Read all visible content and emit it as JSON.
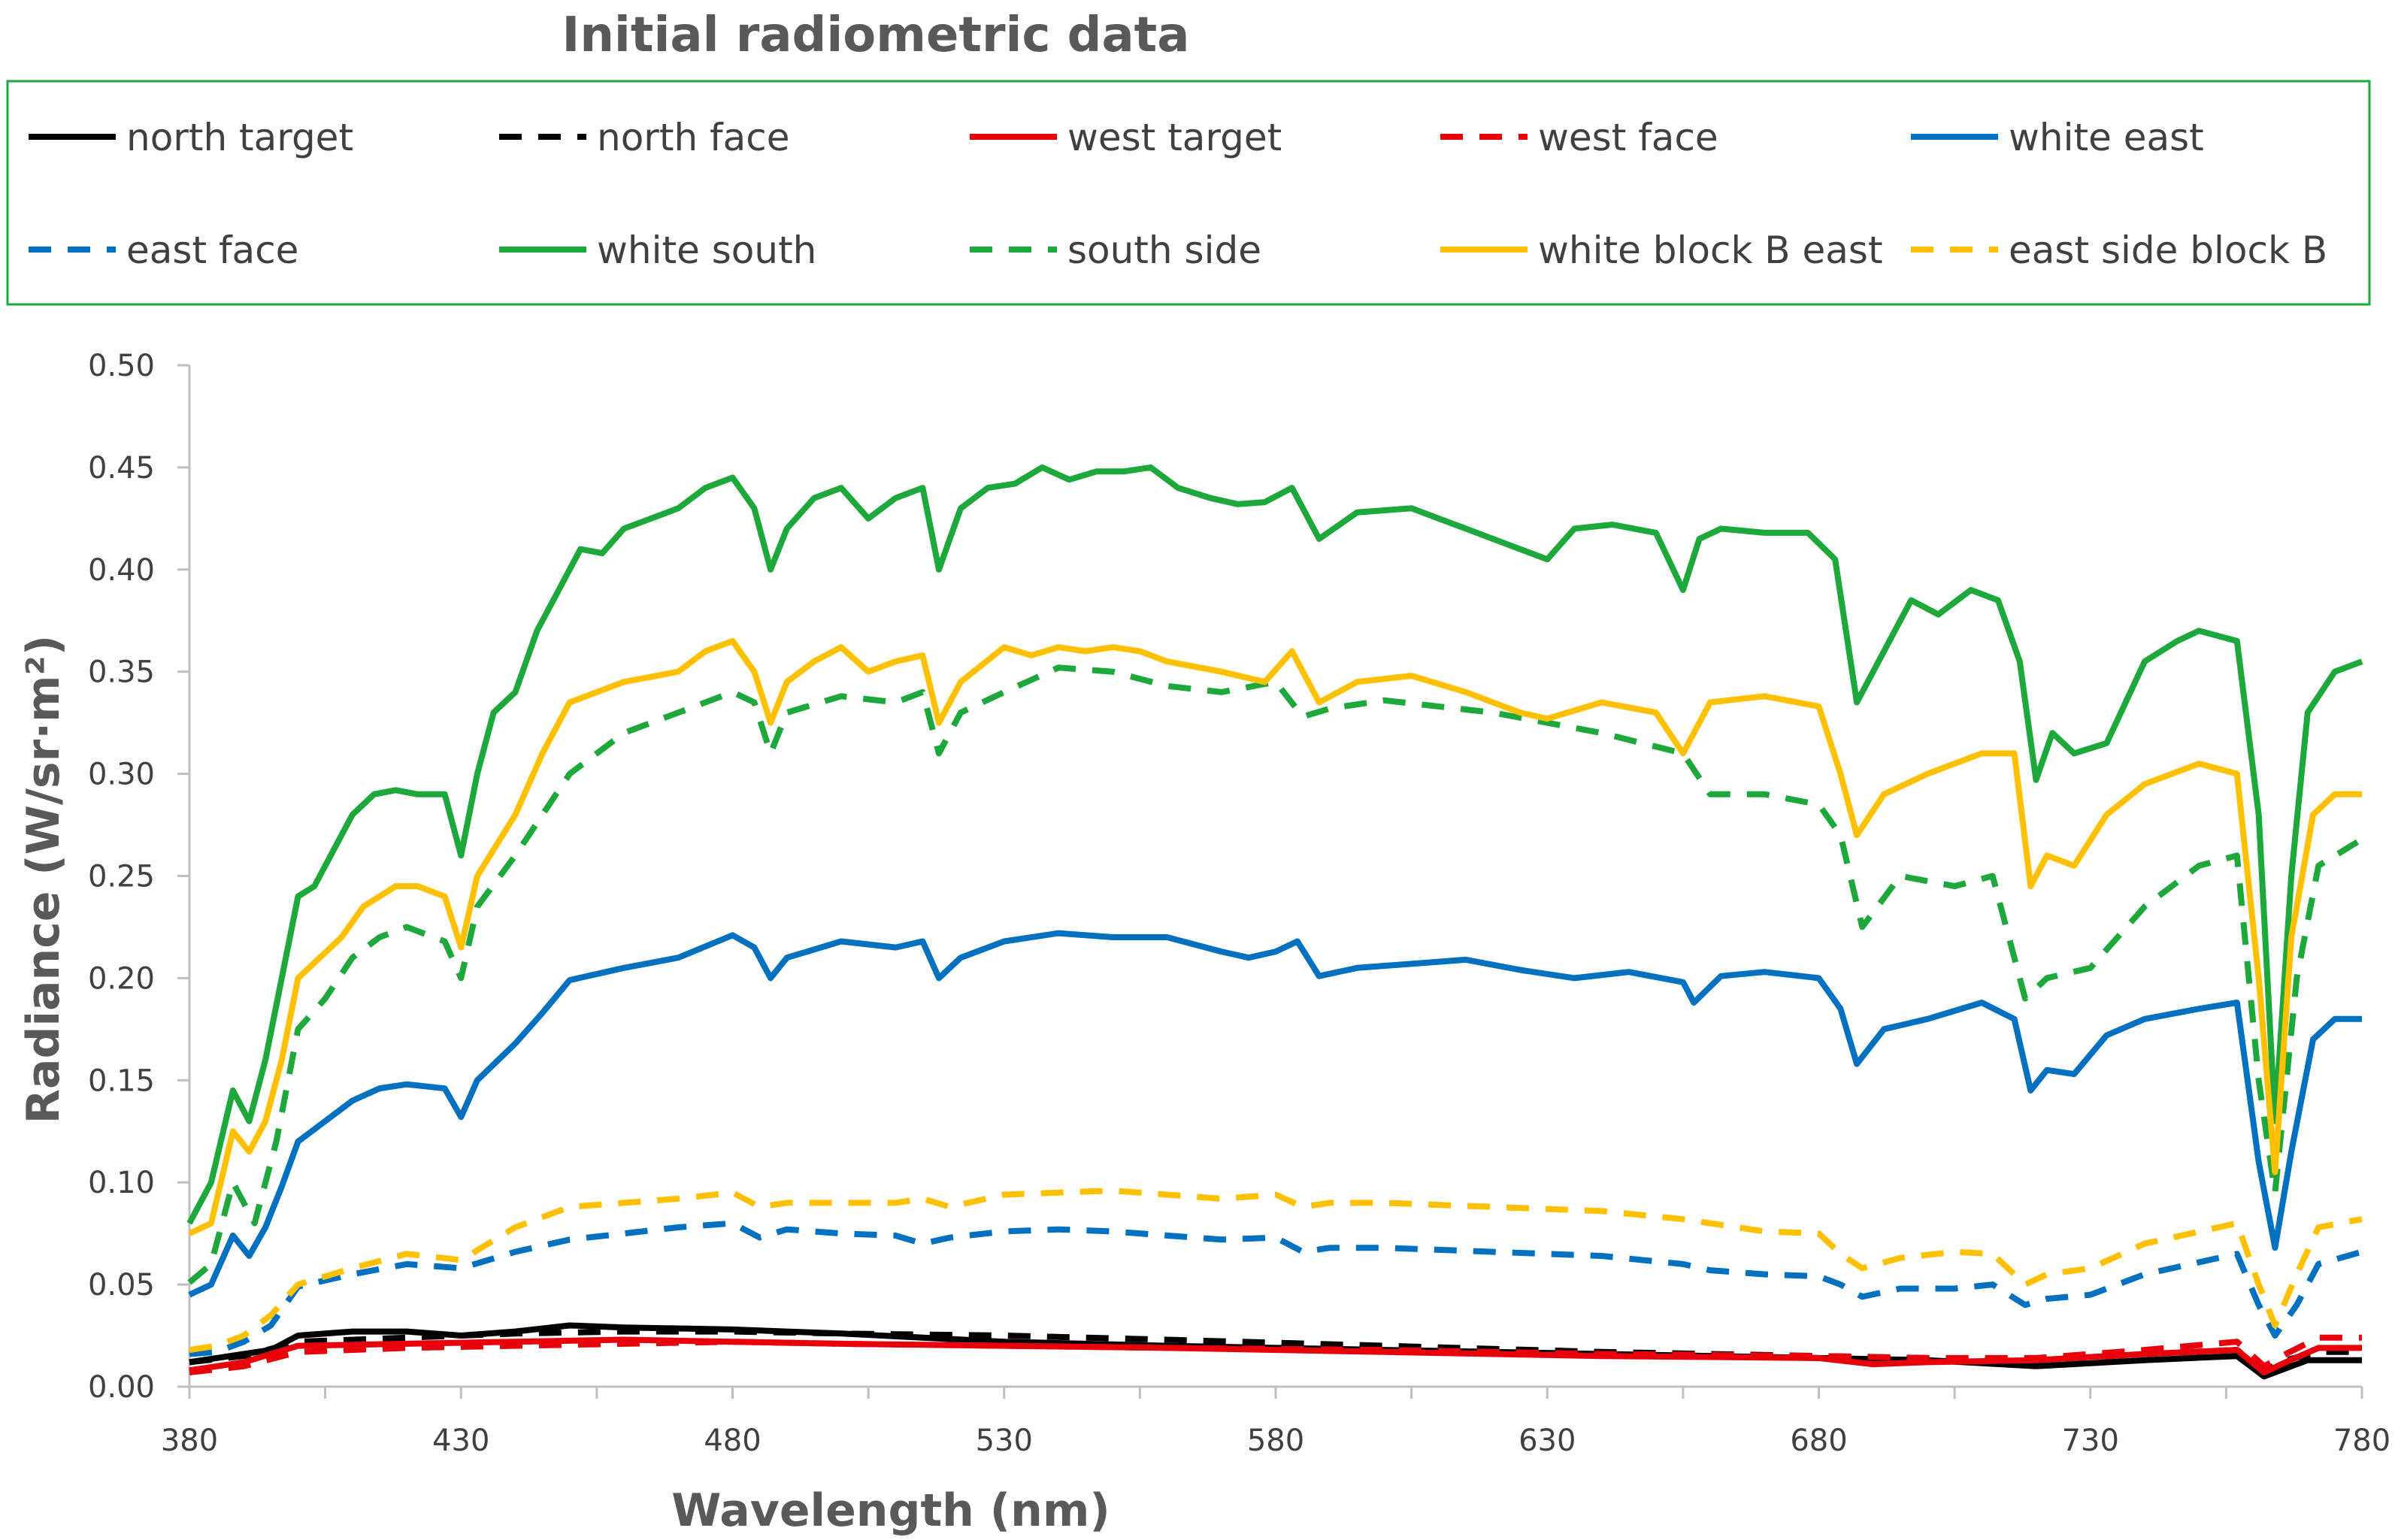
{
  "chart_data": {
    "type": "line",
    "title": "Initial radiometric data",
    "xlabel": "Wavelength (nm)",
    "ylabel": "Radiance (W/sr·m²)",
    "xlim": [
      380,
      780
    ],
    "ylim": [
      0,
      0.5
    ],
    "xticks": [
      380,
      430,
      480,
      530,
      580,
      630,
      680,
      730,
      780
    ],
    "yticks": [
      0,
      0.05,
      0.1,
      0.15,
      0.2,
      0.25,
      0.3,
      0.35,
      0.4,
      0.45,
      0.5
    ],
    "xtick_labels": [
      "380",
      "430",
      "480",
      "530",
      "580",
      "630",
      "680",
      "730",
      "780"
    ],
    "ytick_labels": [
      "0.00",
      "0.05",
      "0.10",
      "0.15",
      "0.20",
      "0.25",
      "0.30",
      "0.35",
      "0.40",
      "0.45",
      "0.50"
    ],
    "grid": false,
    "legend_position": "top",
    "series": [
      {
        "name": "north target",
        "color": "#000000",
        "dash": "solid",
        "x": [
          380,
          385,
          390,
          395,
          400,
          410,
          420,
          430,
          440,
          450,
          460,
          480,
          500,
          530,
          560,
          600,
          640,
          680,
          700,
          720,
          740,
          757,
          762,
          765,
          770,
          780
        ],
        "y": [
          0.012,
          0.014,
          0.016,
          0.018,
          0.025,
          0.027,
          0.027,
          0.025,
          0.027,
          0.03,
          0.029,
          0.028,
          0.026,
          0.022,
          0.02,
          0.018,
          0.016,
          0.014,
          0.013,
          0.01,
          0.013,
          0.015,
          0.005,
          0.008,
          0.013,
          0.013
        ]
      },
      {
        "name": "north face",
        "color": "#000000",
        "dash": "dashed",
        "x": [
          380,
          390,
          400,
          420,
          440,
          460,
          480,
          500,
          530,
          560,
          600,
          640,
          680,
          700,
          720,
          740,
          757,
          762,
          766,
          772,
          780
        ],
        "y": [
          0.012,
          0.015,
          0.022,
          0.024,
          0.026,
          0.027,
          0.027,
          0.026,
          0.025,
          0.023,
          0.02,
          0.017,
          0.015,
          0.014,
          0.013,
          0.016,
          0.018,
          0.008,
          0.013,
          0.017,
          0.017
        ]
      },
      {
        "name": "west target",
        "color": "#E8000B",
        "dash": "solid",
        "x": [
          380,
          390,
          400,
          420,
          440,
          460,
          480,
          500,
          530,
          560,
          600,
          640,
          680,
          690,
          700,
          720,
          740,
          757,
          762,
          766,
          772,
          780
        ],
        "y": [
          0.008,
          0.012,
          0.02,
          0.021,
          0.022,
          0.023,
          0.022,
          0.021,
          0.02,
          0.019,
          0.017,
          0.015,
          0.014,
          0.011,
          0.012,
          0.013,
          0.016,
          0.018,
          0.007,
          0.012,
          0.019,
          0.019
        ]
      },
      {
        "name": "west face",
        "color": "#E8000B",
        "dash": "dashed",
        "x": [
          380,
          390,
          400,
          420,
          440,
          460,
          480,
          500,
          530,
          560,
          600,
          640,
          680,
          700,
          720,
          740,
          757,
          762,
          766,
          772,
          780
        ],
        "y": [
          0.007,
          0.01,
          0.017,
          0.019,
          0.02,
          0.021,
          0.022,
          0.021,
          0.02,
          0.019,
          0.018,
          0.016,
          0.015,
          0.014,
          0.014,
          0.018,
          0.022,
          0.01,
          0.016,
          0.024,
          0.024
        ]
      },
      {
        "name": "white east",
        "color": "#0070C0",
        "dash": "solid",
        "x": [
          380,
          384,
          388,
          391,
          394,
          397,
          400,
          405,
          410,
          415,
          420,
          427,
          430,
          433,
          440,
          445,
          450,
          460,
          470,
          480,
          484,
          487,
          490,
          500,
          510,
          515,
          518,
          522,
          530,
          540,
          550,
          560,
          570,
          575,
          580,
          584,
          588,
          595,
          605,
          615,
          625,
          635,
          645,
          655,
          657,
          662,
          670,
          680,
          684,
          687,
          692,
          700,
          710,
          716,
          719,
          722,
          727,
          733,
          740,
          750,
          757,
          761,
          764,
          767,
          771,
          775,
          780
        ],
        "y": [
          0.045,
          0.05,
          0.074,
          0.064,
          0.078,
          0.098,
          0.12,
          0.13,
          0.14,
          0.146,
          0.148,
          0.146,
          0.132,
          0.15,
          0.168,
          0.183,
          0.199,
          0.205,
          0.21,
          0.221,
          0.215,
          0.2,
          0.21,
          0.218,
          0.215,
          0.218,
          0.2,
          0.21,
          0.218,
          0.222,
          0.22,
          0.22,
          0.213,
          0.21,
          0.213,
          0.218,
          0.201,
          0.205,
          0.207,
          0.209,
          0.204,
          0.2,
          0.203,
          0.198,
          0.188,
          0.201,
          0.203,
          0.2,
          0.185,
          0.158,
          0.175,
          0.18,
          0.188,
          0.18,
          0.145,
          0.155,
          0.153,
          0.172,
          0.18,
          0.185,
          0.188,
          0.11,
          0.068,
          0.115,
          0.17,
          0.18,
          0.18
        ]
      },
      {
        "name": "east face",
        "color": "#0070C0",
        "dash": "dashed",
        "x": [
          380,
          385,
          390,
          395,
          400,
          410,
          420,
          430,
          440,
          450,
          460,
          470,
          480,
          485,
          490,
          500,
          510,
          515,
          520,
          530,
          540,
          550,
          560,
          570,
          580,
          585,
          590,
          600,
          620,
          640,
          655,
          660,
          670,
          680,
          684,
          688,
          695,
          705,
          712,
          718,
          722,
          730,
          740,
          757,
          761,
          764,
          768,
          772,
          780
        ],
        "y": [
          0.016,
          0.017,
          0.022,
          0.03,
          0.049,
          0.055,
          0.06,
          0.058,
          0.066,
          0.072,
          0.075,
          0.078,
          0.08,
          0.073,
          0.077,
          0.075,
          0.074,
          0.07,
          0.073,
          0.076,
          0.077,
          0.076,
          0.074,
          0.072,
          0.073,
          0.066,
          0.068,
          0.068,
          0.066,
          0.064,
          0.06,
          0.057,
          0.055,
          0.054,
          0.05,
          0.044,
          0.048,
          0.048,
          0.05,
          0.04,
          0.043,
          0.045,
          0.055,
          0.065,
          0.04,
          0.025,
          0.04,
          0.06,
          0.066
        ]
      },
      {
        "name": "white south",
        "color": "#1CA83A",
        "dash": "solid",
        "x": [
          380,
          384,
          388,
          391,
          394,
          397,
          400,
          403,
          406,
          410,
          414,
          418,
          422,
          427,
          430,
          433,
          436,
          440,
          444,
          448,
          452,
          456,
          460,
          465,
          470,
          475,
          480,
          484,
          487,
          490,
          495,
          500,
          505,
          510,
          515,
          518,
          522,
          527,
          532,
          537,
          542,
          547,
          552,
          557,
          562,
          568,
          573,
          578,
          583,
          588,
          595,
          605,
          615,
          625,
          630,
          635,
          642,
          650,
          655,
          658,
          662,
          670,
          678,
          683,
          687,
          692,
          697,
          702,
          708,
          713,
          717,
          720,
          723,
          727,
          733,
          740,
          746,
          750,
          757,
          761,
          764,
          767,
          770,
          775,
          780
        ],
        "y": [
          0.08,
          0.1,
          0.145,
          0.13,
          0.16,
          0.2,
          0.24,
          0.245,
          0.26,
          0.28,
          0.29,
          0.292,
          0.29,
          0.29,
          0.26,
          0.3,
          0.33,
          0.34,
          0.37,
          0.39,
          0.41,
          0.408,
          0.42,
          0.425,
          0.43,
          0.44,
          0.445,
          0.43,
          0.4,
          0.42,
          0.435,
          0.44,
          0.425,
          0.435,
          0.44,
          0.4,
          0.43,
          0.44,
          0.442,
          0.45,
          0.444,
          0.448,
          0.448,
          0.45,
          0.44,
          0.435,
          0.432,
          0.433,
          0.44,
          0.415,
          0.428,
          0.43,
          0.42,
          0.41,
          0.405,
          0.42,
          0.422,
          0.418,
          0.39,
          0.415,
          0.42,
          0.418,
          0.418,
          0.405,
          0.335,
          0.36,
          0.385,
          0.378,
          0.39,
          0.385,
          0.355,
          0.297,
          0.32,
          0.31,
          0.315,
          0.355,
          0.365,
          0.37,
          0.365,
          0.28,
          0.13,
          0.25,
          0.33,
          0.35,
          0.355
        ]
      },
      {
        "name": "south side",
        "color": "#1CA83A",
        "dash": "dashed",
        "x": [
          380,
          384,
          388,
          392,
          396,
          400,
          405,
          410,
          415,
          420,
          427,
          430,
          433,
          440,
          445,
          450,
          455,
          460,
          470,
          480,
          484,
          487,
          490,
          500,
          510,
          515,
          518,
          522,
          530,
          540,
          550,
          560,
          570,
          580,
          585,
          590,
          600,
          620,
          640,
          655,
          660,
          670,
          680,
          684,
          688,
          695,
          705,
          712,
          718,
          722,
          730,
          740,
          750,
          757,
          761,
          764,
          768,
          772,
          780
        ],
        "y": [
          0.051,
          0.06,
          0.1,
          0.08,
          0.12,
          0.175,
          0.19,
          0.21,
          0.22,
          0.225,
          0.218,
          0.2,
          0.235,
          0.26,
          0.28,
          0.3,
          0.31,
          0.32,
          0.33,
          0.34,
          0.335,
          0.31,
          0.33,
          0.338,
          0.335,
          0.34,
          0.31,
          0.33,
          0.34,
          0.352,
          0.35,
          0.343,
          0.34,
          0.345,
          0.328,
          0.332,
          0.336,
          0.33,
          0.32,
          0.31,
          0.29,
          0.29,
          0.285,
          0.27,
          0.225,
          0.25,
          0.245,
          0.25,
          0.19,
          0.2,
          0.205,
          0.235,
          0.255,
          0.26,
          0.15,
          0.095,
          0.2,
          0.255,
          0.268
        ]
      },
      {
        "name": "white block B east",
        "color": "#FFC000",
        "dash": "solid",
        "x": [
          380,
          384,
          388,
          391,
          394,
          397,
          400,
          404,
          408,
          412,
          418,
          422,
          427,
          430,
          433,
          440,
          445,
          450,
          455,
          460,
          470,
          475,
          480,
          484,
          487,
          490,
          495,
          500,
          505,
          510,
          515,
          518,
          522,
          530,
          535,
          540,
          545,
          550,
          555,
          560,
          570,
          578,
          583,
          588,
          595,
          605,
          615,
          625,
          630,
          640,
          650,
          655,
          660,
          670,
          680,
          684,
          687,
          692,
          700,
          710,
          716,
          719,
          722,
          727,
          733,
          740,
          750,
          757,
          761,
          764,
          767,
          771,
          775,
          780
        ],
        "y": [
          0.075,
          0.08,
          0.125,
          0.115,
          0.13,
          0.16,
          0.2,
          0.21,
          0.22,
          0.235,
          0.245,
          0.245,
          0.24,
          0.215,
          0.25,
          0.28,
          0.31,
          0.335,
          0.34,
          0.345,
          0.35,
          0.36,
          0.365,
          0.35,
          0.325,
          0.345,
          0.355,
          0.362,
          0.35,
          0.355,
          0.358,
          0.325,
          0.345,
          0.362,
          0.358,
          0.362,
          0.36,
          0.362,
          0.36,
          0.355,
          0.35,
          0.345,
          0.36,
          0.335,
          0.345,
          0.348,
          0.34,
          0.33,
          0.327,
          0.335,
          0.33,
          0.31,
          0.335,
          0.338,
          0.333,
          0.3,
          0.27,
          0.29,
          0.3,
          0.31,
          0.31,
          0.245,
          0.26,
          0.255,
          0.28,
          0.295,
          0.305,
          0.3,
          0.2,
          0.105,
          0.22,
          0.28,
          0.29,
          0.29
        ]
      },
      {
        "name": "east side block B",
        "color": "#FFC000",
        "dash": "dashed",
        "x": [
          380,
          385,
          390,
          395,
          400,
          410,
          420,
          430,
          440,
          450,
          460,
          470,
          480,
          485,
          490,
          500,
          510,
          515,
          520,
          530,
          540,
          550,
          560,
          570,
          580,
          585,
          590,
          600,
          620,
          640,
          655,
          660,
          670,
          680,
          684,
          688,
          695,
          705,
          712,
          718,
          722,
          730,
          740,
          757,
          761,
          764,
          768,
          772,
          780
        ],
        "y": [
          0.018,
          0.02,
          0.025,
          0.035,
          0.05,
          0.058,
          0.065,
          0.062,
          0.078,
          0.088,
          0.09,
          0.092,
          0.095,
          0.088,
          0.09,
          0.09,
          0.09,
          0.092,
          0.088,
          0.094,
          0.095,
          0.096,
          0.094,
          0.092,
          0.094,
          0.088,
          0.09,
          0.09,
          0.088,
          0.086,
          0.082,
          0.08,
          0.076,
          0.075,
          0.065,
          0.058,
          0.063,
          0.066,
          0.065,
          0.05,
          0.055,
          0.058,
          0.07,
          0.08,
          0.05,
          0.03,
          0.055,
          0.078,
          0.082
        ]
      }
    ]
  }
}
